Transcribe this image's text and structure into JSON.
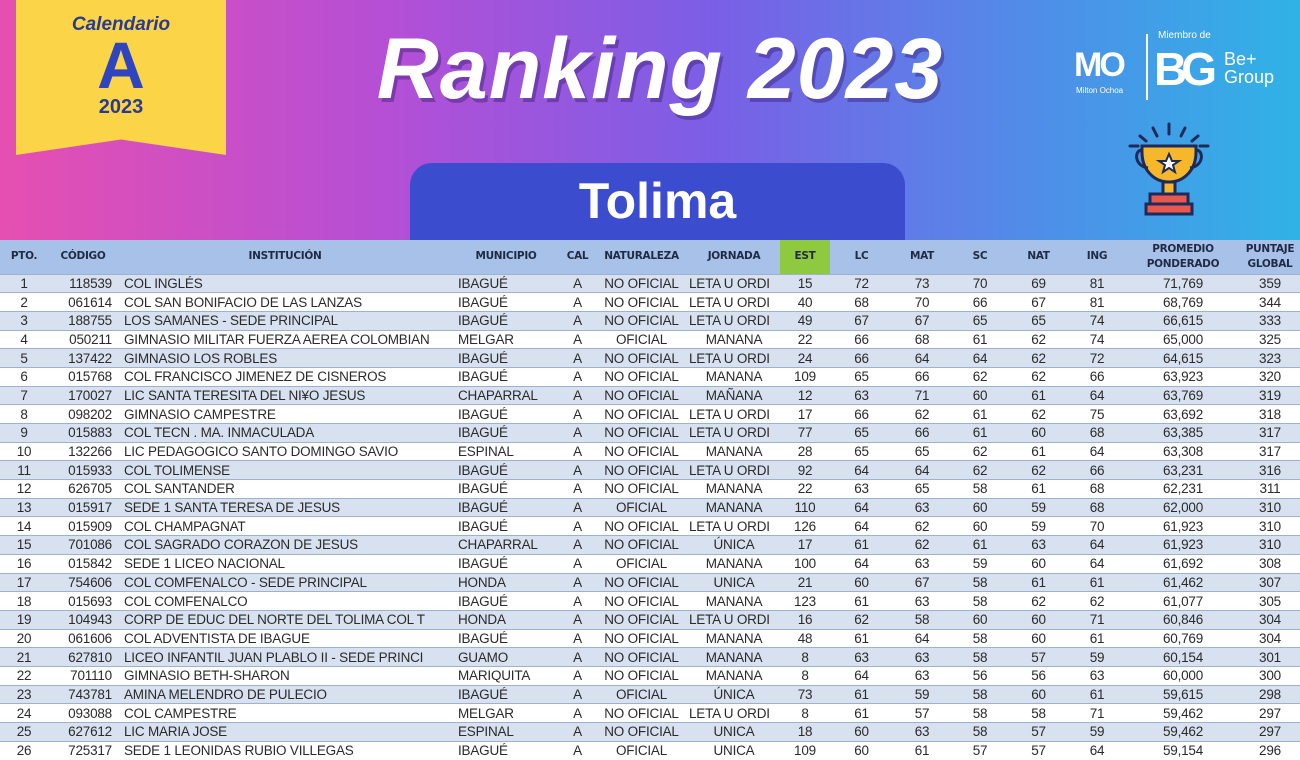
{
  "badge": {
    "label": "Calendario",
    "letter": "A",
    "year": "2023"
  },
  "title": "Ranking 2023",
  "region": "Tolima",
  "logos": {
    "milton": "MO",
    "milton_sub": "Milton Ochoa",
    "member_of": "Miembro de",
    "bg": "BG",
    "be_group": "Be+ Group"
  },
  "colors": {
    "badge": "#fbd448",
    "pill": "#3b4ccf",
    "header_row": "#a7c1e9",
    "est_header": "#8fc93f",
    "row_stripe": "#d8e1f0"
  },
  "table": {
    "headers": [
      "PTO.",
      "CÓDIGO",
      "INSTITUCIÓN",
      "MUNICIPIO",
      "CAL",
      "NATURALEZA",
      "JORNADA",
      "EST",
      "LC",
      "MAT",
      "SC",
      "NAT",
      "ING",
      "PROMEDIO PONDERADO",
      "PUNTAJE GLOBAL"
    ],
    "rows": [
      [
        "1",
        "118539",
        "COL INGLÉS",
        "IBAGUÉ",
        "A",
        "NO OFICIAL",
        "LETA U ORDI",
        "15",
        "72",
        "73",
        "70",
        "69",
        "81",
        "71,769",
        "359"
      ],
      [
        "2",
        "061614",
        "COL  SAN BONIFACIO DE LAS LANZAS",
        "IBAGUÉ",
        "A",
        "NO OFICIAL",
        "LETA U ORDI",
        "40",
        "68",
        "70",
        "66",
        "67",
        "81",
        "68,769",
        "344"
      ],
      [
        "3",
        "188755",
        "LOS SAMANES - SEDE PRINCIPAL",
        "IBAGUÉ",
        "A",
        "NO OFICIAL",
        "LETA U ORDI",
        "49",
        "67",
        "67",
        "65",
        "65",
        "74",
        "66,615",
        "333"
      ],
      [
        "4",
        "050211",
        "GIMNASIO MILITAR FUERZA AEREA COLOMBIAN",
        "MELGAR",
        "A",
        "OFICIAL",
        "MANANA",
        "22",
        "66",
        "68",
        "61",
        "62",
        "74",
        "65,000",
        "325"
      ],
      [
        "5",
        "137422",
        "GIMNASIO LOS ROBLES",
        "IBAGUÉ",
        "A",
        "NO OFICIAL",
        "LETA U ORDI",
        "24",
        "66",
        "64",
        "64",
        "62",
        "72",
        "64,615",
        "323"
      ],
      [
        "6",
        "015768",
        "COL FRANCISCO JIMENEZ DE CISNEROS",
        "IBAGUÉ",
        "A",
        "NO OFICIAL",
        "MANANA",
        "109",
        "65",
        "66",
        "62",
        "62",
        "66",
        "63,923",
        "320"
      ],
      [
        "7",
        "170027",
        "LIC SANTA TERESITA DEL NI¥O JESUS",
        "CHAPARRAL",
        "A",
        "NO OFICIAL",
        "MAÑANA",
        "12",
        "63",
        "71",
        "60",
        "61",
        "64",
        "63,769",
        "319"
      ],
      [
        "8",
        "098202",
        "GIMNASIO CAMPESTRE",
        "IBAGUÉ",
        "A",
        "NO OFICIAL",
        "LETA U ORDI",
        "17",
        "66",
        "62",
        "61",
        "62",
        "75",
        "63,692",
        "318"
      ],
      [
        "9",
        "015883",
        "COL TECN . MA.  INMACULADA",
        "IBAGUÉ",
        "A",
        "NO OFICIAL",
        "LETA U ORDI",
        "77",
        "65",
        "66",
        "61",
        "60",
        "68",
        "63,385",
        "317"
      ],
      [
        "10",
        "132266",
        "LIC  PEDAGOGICO SANTO DOMINGO SAVIO",
        "ESPINAL",
        "A",
        "NO OFICIAL",
        "MANANA",
        "28",
        "65",
        "65",
        "62",
        "61",
        "64",
        "63,308",
        "317"
      ],
      [
        "11",
        "015933",
        "COL  TOLIMENSE",
        "IBAGUÉ",
        "A",
        "NO OFICIAL",
        "LETA U ORDI",
        "92",
        "64",
        "64",
        "62",
        "62",
        "66",
        "63,231",
        "316"
      ],
      [
        "12",
        "626705",
        "COL SANTANDER",
        "IBAGUÉ",
        "A",
        "NO OFICIAL",
        "MANANA",
        "22",
        "63",
        "65",
        "58",
        "61",
        "68",
        "62,231",
        "311"
      ],
      [
        "13",
        "015917",
        "SEDE 1 SANTA TERESA DE JESUS",
        "IBAGUÉ",
        "A",
        "OFICIAL",
        "MANANA",
        "110",
        "64",
        "63",
        "60",
        "59",
        "68",
        "62,000",
        "310"
      ],
      [
        "14",
        "015909",
        "COL CHAMPAGNAT",
        "IBAGUÉ",
        "A",
        "NO OFICIAL",
        "LETA U ORDI",
        "126",
        "64",
        "62",
        "60",
        "59",
        "70",
        "61,923",
        "310"
      ],
      [
        "15",
        "701086",
        "COL SAGRADO CORAZON DE JESUS",
        "CHAPARRAL",
        "A",
        "NO OFICIAL",
        "ÚNICA",
        "17",
        "61",
        "62",
        "61",
        "63",
        "64",
        "61,923",
        "310"
      ],
      [
        "16",
        "015842",
        "SEDE 1 LICEO NACIONAL",
        "IBAGUÉ",
        "A",
        "OFICIAL",
        "MANANA",
        "100",
        "64",
        "63",
        "59",
        "60",
        "64",
        "61,692",
        "308"
      ],
      [
        "17",
        "754606",
        "COL COMFENALCO - SEDE PRINCIPAL",
        "HONDA",
        "A",
        "NO OFICIAL",
        "UNICA",
        "21",
        "60",
        "67",
        "58",
        "61",
        "61",
        "61,462",
        "307"
      ],
      [
        "18",
        "015693",
        "COL  COMFENALCO",
        "IBAGUÉ",
        "A",
        "NO OFICIAL",
        "MANANA",
        "123",
        "61",
        "63",
        "58",
        "62",
        "62",
        "61,077",
        "305"
      ],
      [
        "19",
        "104943",
        "CORP DE EDUC DEL NORTE  DEL TOLIMA COL T",
        "HONDA",
        "A",
        "NO OFICIAL",
        "LETA U ORDI",
        "16",
        "62",
        "58",
        "60",
        "60",
        "71",
        "60,846",
        "304"
      ],
      [
        "20",
        "061606",
        "COL  ADVENTISTA DE IBAGUE",
        "IBAGUÉ",
        "A",
        "NO OFICIAL",
        "MANANA",
        "48",
        "61",
        "64",
        "58",
        "60",
        "61",
        "60,769",
        "304"
      ],
      [
        "21",
        "627810",
        "LICEO INFANTIL  JUAN PLABLO II - SEDE PRINCI",
        "GUAMO",
        "A",
        "NO OFICIAL",
        "MANANA",
        "8",
        "63",
        "63",
        "58",
        "57",
        "59",
        "60,154",
        "301"
      ],
      [
        "22",
        "701110",
        "GIMNASIO BETH-SHARON",
        "MARIQUITA",
        "A",
        "NO OFICIAL",
        "MANANA",
        "8",
        "64",
        "63",
        "56",
        "56",
        "63",
        "60,000",
        "300"
      ],
      [
        "23",
        "743781",
        "AMINA MELENDRO DE PULECIO",
        "IBAGUÉ",
        "A",
        "OFICIAL",
        "ÚNICA",
        "73",
        "61",
        "59",
        "58",
        "60",
        "61",
        "59,615",
        "298"
      ],
      [
        "24",
        "093088",
        "COL CAMPESTRE",
        "MELGAR",
        "A",
        "NO OFICIAL",
        "LETA U ORDI",
        "8",
        "61",
        "57",
        "58",
        "58",
        "71",
        "59,462",
        "297"
      ],
      [
        "25",
        "627612",
        "LIC  MARIA JOSE",
        "ESPINAL",
        "A",
        "NO OFICIAL",
        "UNICA",
        "18",
        "60",
        "63",
        "58",
        "57",
        "59",
        "59,462",
        "297"
      ],
      [
        "26",
        "725317",
        "SEDE 1 LEONIDAS RUBIO VILLEGAS",
        "IBAGUÉ",
        "A",
        "OFICIAL",
        "UNICA",
        "109",
        "60",
        "61",
        "57",
        "57",
        "64",
        "59,154",
        "296"
      ]
    ]
  }
}
